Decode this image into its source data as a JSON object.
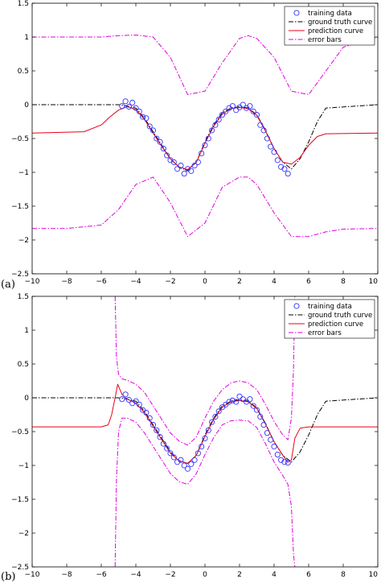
{
  "figure": {
    "panels": [
      "(a)",
      "(b)"
    ]
  },
  "chart_data": [
    {
      "type": "line",
      "panel_label": "(a)",
      "xlim": [
        -10,
        10
      ],
      "ylim": [
        -2.5,
        1.5
      ],
      "xticks": [
        -10,
        -8,
        -6,
        -4,
        -2,
        0,
        2,
        4,
        6,
        8,
        10
      ],
      "yticks": [
        -2.5,
        -2,
        -1.5,
        -1,
        -0.5,
        0,
        0.5,
        1,
        1.5
      ],
      "xtick_labels": [
        "−10",
        "−8",
        "−6",
        "−4",
        "−2",
        "0",
        "2",
        "4",
        "6",
        "8",
        "10"
      ],
      "ytick_labels": [
        "−2.5",
        "−2",
        "−1.5",
        "−1",
        "−0.5",
        "0",
        "0.5",
        "1",
        "1.5"
      ],
      "legend": {
        "placement": "top-right",
        "entries": [
          "training data",
          "ground truth curve",
          "prediction curve",
          "error bars"
        ]
      },
      "colors": {
        "training": "#3333ff",
        "truth": "#000000",
        "prediction": "#e8001c",
        "error": "#e000e0"
      },
      "series": [
        {
          "name": "ground truth curve",
          "style": "dash-dot",
          "x": [
            -10,
            -5,
            -4.5,
            -4,
            -3.5,
            -3,
            -2.5,
            -2,
            -1.5,
            -1,
            -0.5,
            0,
            0.5,
            1,
            1.5,
            2,
            2.5,
            3,
            3.5,
            4,
            4.5,
            5,
            5.5,
            6,
            6.5,
            7,
            10
          ],
          "y": [
            0,
            0,
            -0.02,
            -0.05,
            -0.2,
            -0.4,
            -0.6,
            -0.8,
            -0.93,
            -0.97,
            -0.85,
            -0.55,
            -0.3,
            -0.12,
            -0.05,
            -0.03,
            -0.05,
            -0.15,
            -0.38,
            -0.65,
            -0.85,
            -0.95,
            -0.8,
            -0.55,
            -0.25,
            -0.05,
            0
          ]
        },
        {
          "name": "prediction curve",
          "style": "solid",
          "x": [
            -10,
            -7,
            -6,
            -5.5,
            -5,
            -4.5,
            -4,
            -3.5,
            -3,
            -2.5,
            -2,
            -1.5,
            -1,
            -0.5,
            0,
            0.5,
            1,
            1.5,
            2,
            2.5,
            3,
            3.5,
            4,
            4.5,
            5,
            5.5,
            6,
            6.5,
            7,
            10
          ],
          "y": [
            -0.42,
            -0.4,
            -0.3,
            -0.18,
            -0.08,
            -0.03,
            -0.07,
            -0.22,
            -0.42,
            -0.62,
            -0.8,
            -0.92,
            -0.96,
            -0.85,
            -0.57,
            -0.32,
            -0.14,
            -0.06,
            -0.04,
            -0.06,
            -0.16,
            -0.39,
            -0.65,
            -0.85,
            -0.88,
            -0.78,
            -0.6,
            -0.47,
            -0.43,
            -0.42
          ]
        },
        {
          "name": "error bars",
          "style": "dash-dot",
          "x": [
            -10,
            -8,
            -6,
            -5,
            -4,
            -3,
            -2,
            -1,
            0,
            1,
            2,
            2.5,
            3,
            4,
            5,
            6,
            7,
            8,
            10
          ],
          "y": [
            1,
            1,
            1,
            1.02,
            1.03,
            1,
            0.7,
            0.15,
            0.2,
            0.62,
            0.98,
            1.02,
            0.98,
            0.7,
            0.2,
            0.15,
            0.5,
            0.85,
            1
          ]
        },
        {
          "name": "error bars",
          "style": "dash-dot",
          "x": [
            -10,
            -8,
            -6,
            -5,
            -4,
            -3,
            -2,
            -1,
            0,
            1,
            2,
            2.5,
            3,
            4,
            5,
            6,
            7,
            8,
            10
          ],
          "y": [
            -1.83,
            -1.83,
            -1.78,
            -1.55,
            -1.18,
            -1.07,
            -1.45,
            -1.95,
            -1.75,
            -1.22,
            -1.07,
            -1.07,
            -1.18,
            -1.6,
            -1.95,
            -1.95,
            -1.88,
            -1.84,
            -1.83
          ]
        },
        {
          "name": "training data",
          "style": "markers",
          "x": [
            -4.8,
            -4.6,
            -4.4,
            -4.2,
            -4.0,
            -3.8,
            -3.6,
            -3.4,
            -3.2,
            -3.0,
            -2.8,
            -2.6,
            -2.4,
            -2.2,
            -2.0,
            -1.8,
            -1.6,
            -1.4,
            -1.2,
            -1.0,
            -0.8,
            -0.6,
            -0.4,
            -0.2,
            0.0,
            0.2,
            0.4,
            0.6,
            0.8,
            1.0,
            1.2,
            1.4,
            1.6,
            1.8,
            2.0,
            2.2,
            2.4,
            2.6,
            2.8,
            3.0,
            3.2,
            3.4,
            3.6,
            3.8,
            4.0,
            4.2,
            4.4,
            4.6,
            4.8
          ],
          "y": [
            -0.02,
            0.05,
            -0.03,
            0.03,
            -0.05,
            -0.1,
            -0.18,
            -0.2,
            -0.32,
            -0.38,
            -0.5,
            -0.55,
            -0.65,
            -0.75,
            -0.82,
            -0.85,
            -0.95,
            -0.9,
            -1.02,
            -0.95,
            -0.98,
            -0.9,
            -0.85,
            -0.72,
            -0.6,
            -0.5,
            -0.38,
            -0.3,
            -0.22,
            -0.15,
            -0.1,
            -0.05,
            -0.02,
            -0.08,
            -0.04,
            0.0,
            -0.05,
            -0.02,
            -0.1,
            -0.15,
            -0.3,
            -0.38,
            -0.5,
            -0.62,
            -0.7,
            -0.82,
            -0.92,
            -0.95,
            -1.02
          ]
        }
      ]
    },
    {
      "type": "line",
      "panel_label": "(b)",
      "xlim": [
        -10,
        10
      ],
      "ylim": [
        -2.5,
        1.5
      ],
      "xticks": [
        -10,
        -8,
        -6,
        -4,
        -2,
        0,
        2,
        4,
        6,
        8,
        10
      ],
      "yticks": [
        -2.5,
        -2,
        -1.5,
        -1,
        -0.5,
        0,
        0.5,
        1,
        1.5
      ],
      "xtick_labels": [
        "−10",
        "−8",
        "−6",
        "−4",
        "−2",
        "0",
        "2",
        "4",
        "6",
        "8",
        "10"
      ],
      "ytick_labels": [
        "−2.5",
        "−2",
        "−1.5",
        "−1",
        "−0.5",
        "0",
        "0.5",
        "1",
        "1.5"
      ],
      "legend": {
        "placement": "top-right",
        "entries": [
          "training data",
          "ground truth curve",
          "prediction curve",
          "error bars"
        ]
      },
      "colors": {
        "training": "#3333ff",
        "truth": "#000000",
        "prediction": "#e8001c",
        "error": "#e000e0"
      },
      "series": [
        {
          "name": "ground truth curve",
          "style": "dash-dot",
          "x": [
            -10,
            -5,
            -4.5,
            -4,
            -3.5,
            -3,
            -2.5,
            -2,
            -1.5,
            -1,
            -0.5,
            0,
            0.5,
            1,
            1.5,
            2,
            2.5,
            3,
            3.5,
            4,
            4.5,
            5,
            5.5,
            6,
            6.5,
            7,
            10
          ],
          "y": [
            0,
            0,
            -0.02,
            -0.05,
            -0.2,
            -0.4,
            -0.6,
            -0.8,
            -0.93,
            -0.97,
            -0.85,
            -0.55,
            -0.3,
            -0.12,
            -0.05,
            -0.03,
            -0.05,
            -0.15,
            -0.38,
            -0.65,
            -0.85,
            -0.95,
            -0.8,
            -0.55,
            -0.25,
            -0.05,
            0
          ]
        },
        {
          "name": "prediction curve",
          "style": "solid",
          "x": [
            -10,
            -6,
            -5.6,
            -5.4,
            -5.2,
            -5.05,
            -4.8,
            -4.5,
            -4,
            -3.5,
            -3,
            -2.5,
            -2,
            -1.5,
            -1,
            -0.5,
            0,
            0.5,
            1,
            1.5,
            2,
            2.5,
            3,
            3.5,
            4,
            4.5,
            4.8,
            5.0,
            5.2,
            5.5,
            6,
            10
          ],
          "y": [
            -0.43,
            -0.43,
            -0.4,
            -0.25,
            0.0,
            0.2,
            0.05,
            -0.02,
            -0.08,
            -0.22,
            -0.42,
            -0.62,
            -0.82,
            -0.93,
            -0.97,
            -0.85,
            -0.57,
            -0.32,
            -0.14,
            -0.06,
            -0.04,
            -0.06,
            -0.16,
            -0.39,
            -0.65,
            -0.85,
            -0.95,
            -0.92,
            -0.6,
            -0.45,
            -0.43,
            -0.43
          ]
        },
        {
          "name": "error bars",
          "style": "dash-dot",
          "x": [
            -5.2,
            -5.12,
            -5.0,
            -4.8,
            -4.5,
            -4,
            -3.5,
            -3,
            -2.5,
            -2,
            -1.5,
            -1,
            -0.5,
            0,
            0.5,
            1,
            1.5,
            2,
            2.5,
            3,
            3.5,
            4,
            4.5,
            4.8,
            5.0,
            5.12,
            5.2
          ],
          "y": [
            1.5,
            0.6,
            0.35,
            0.28,
            0.26,
            0.2,
            0.08,
            -0.12,
            -0.32,
            -0.52,
            -0.64,
            -0.7,
            -0.58,
            -0.3,
            -0.05,
            0.12,
            0.22,
            0.25,
            0.22,
            0.12,
            -0.1,
            -0.35,
            -0.55,
            -0.62,
            -0.3,
            0.4,
            1.5
          ]
        },
        {
          "name": "error bars",
          "style": "dash-dot",
          "x": [
            -5.2,
            -5.12,
            -5.0,
            -4.8,
            -4.5,
            -4,
            -3.5,
            -3,
            -2.5,
            -2,
            -1.5,
            -1,
            -0.5,
            0,
            0.5,
            1,
            1.5,
            2,
            2.5,
            3,
            3.5,
            4,
            4.5,
            4.8,
            5.0,
            5.12,
            5.2
          ],
          "y": [
            -2.5,
            -1.2,
            -0.5,
            -0.3,
            -0.3,
            -0.36,
            -0.52,
            -0.72,
            -0.92,
            -1.12,
            -1.24,
            -1.28,
            -1.12,
            -0.84,
            -0.59,
            -0.4,
            -0.34,
            -0.33,
            -0.34,
            -0.44,
            -0.68,
            -0.95,
            -1.15,
            -1.28,
            -1.6,
            -2.3,
            -2.5
          ]
        },
        {
          "name": "training data",
          "style": "markers",
          "x": [
            -4.8,
            -4.6,
            -4.4,
            -4.2,
            -4.0,
            -3.8,
            -3.6,
            -3.4,
            -3.2,
            -3.0,
            -2.8,
            -2.6,
            -2.4,
            -2.2,
            -2.0,
            -1.8,
            -1.6,
            -1.4,
            -1.2,
            -1.0,
            -0.8,
            -0.6,
            -0.4,
            -0.2,
            0.0,
            0.2,
            0.4,
            0.6,
            0.8,
            1.0,
            1.2,
            1.4,
            1.6,
            1.8,
            2.0,
            2.2,
            2.4,
            2.6,
            2.8,
            3.0,
            3.2,
            3.4,
            3.6,
            3.8,
            4.0,
            4.2,
            4.4,
            4.6,
            4.8
          ],
          "y": [
            -0.02,
            0.05,
            -0.03,
            -0.08,
            -0.05,
            -0.1,
            -0.18,
            -0.22,
            -0.3,
            -0.4,
            -0.48,
            -0.58,
            -0.68,
            -0.75,
            -0.82,
            -0.88,
            -0.95,
            -0.92,
            -1.0,
            -1.05,
            -0.98,
            -0.92,
            -0.82,
            -0.72,
            -0.6,
            -0.48,
            -0.36,
            -0.28,
            -0.2,
            -0.14,
            -0.1,
            -0.06,
            -0.04,
            -0.06,
            0.02,
            -0.02,
            -0.06,
            -0.02,
            -0.12,
            -0.18,
            -0.28,
            -0.4,
            -0.52,
            -0.62,
            -0.72,
            -0.84,
            -0.92,
            -0.95,
            -0.96
          ]
        }
      ]
    }
  ]
}
